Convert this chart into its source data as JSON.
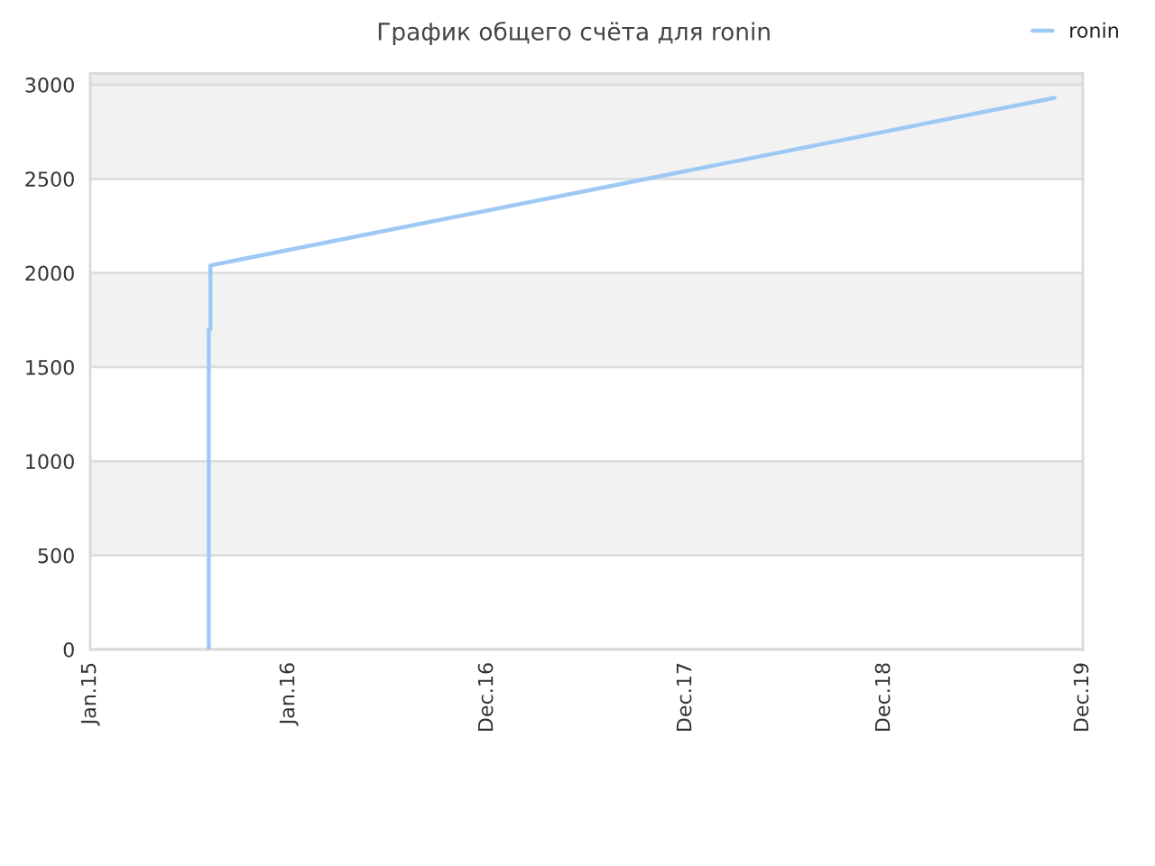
{
  "chart_data": {
    "type": "line",
    "title": "График общего счёта для ronin",
    "x": [
      "2015-08-07",
      "2015-08-07",
      "2015-08-10",
      "2015-08-10",
      "2019-11-09"
    ],
    "series": [
      {
        "name": "ronin",
        "color": "#9ec9f5",
        "values": [
          0,
          1700,
          1700,
          2040,
          2930
        ]
      }
    ],
    "xlim": [
      "2015-01-01",
      "2019-12-31"
    ],
    "xticks": [
      {
        "value": "2015-01-01",
        "label": "Jan.15"
      },
      {
        "value": "2016-01-01",
        "label": "Jan.16"
      },
      {
        "value": "2016-12-31",
        "label": "Dec.16"
      },
      {
        "value": "2017-12-31",
        "label": "Dec.17"
      },
      {
        "value": "2018-12-31",
        "label": "Dec.18"
      },
      {
        "value": "2019-12-31",
        "label": "Dec.19"
      }
    ],
    "ylim": [
      0,
      3060
    ],
    "yticks": [
      0,
      500,
      1000,
      1500,
      2000,
      2500,
      3000
    ],
    "grid": "y",
    "bands": [
      {
        "axis": "y",
        "from": 500,
        "to": 1000,
        "color": "#f2f2f2"
      },
      {
        "axis": "y",
        "from": 1500,
        "to": 2000,
        "color": "#f2f2f2"
      },
      {
        "axis": "y",
        "from": 2500,
        "to": 3000,
        "color": "#f2f2f2"
      },
      {
        "axis": "y",
        "from": 3000,
        "to": 3060,
        "color": "#ececec"
      }
    ],
    "legend": "top right"
  }
}
